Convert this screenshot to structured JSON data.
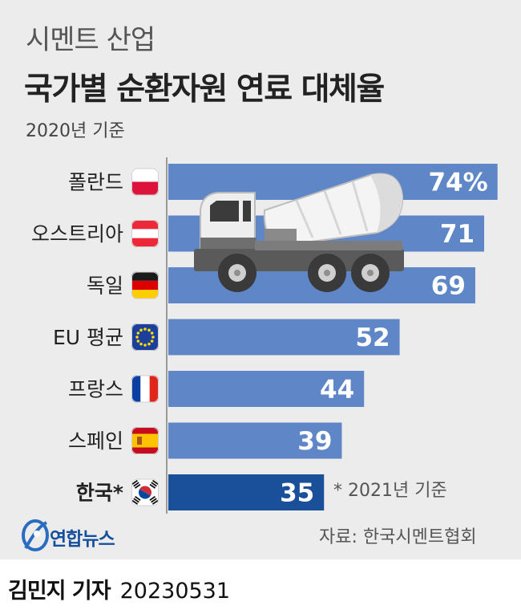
{
  "header": {
    "subtitle": "시멘트 산업",
    "title": "국가별 순환자원 연료 대체율",
    "basis": "2020년 기준"
  },
  "chart_data": {
    "type": "bar",
    "orientation": "horizontal",
    "title": "국가별 순환자원 연료 대체율",
    "unit": "%",
    "categories": [
      "폴란드",
      "오스트리아",
      "독일",
      "EU 평균",
      "프랑스",
      "스페인",
      "한국*"
    ],
    "values": [
      74,
      71,
      69,
      52,
      44,
      39,
      35
    ],
    "value_labels": [
      "74%",
      "71",
      "69",
      "52",
      "44",
      "39",
      "35"
    ],
    "flags": [
      "poland-flag-icon",
      "austria-flag-icon",
      "germany-flag-icon",
      "eu-flag-icon",
      "france-flag-icon",
      "spain-flag-icon",
      "korea-flag-icon"
    ],
    "highlight_index": 6,
    "xlim": [
      0,
      100
    ],
    "colors": {
      "bar": "#5f86c6",
      "highlight": "#1a4f99",
      "label": "#ffffff"
    }
  },
  "footnote": "* 2021년 기준",
  "source": "자료: 한국시멘트협회",
  "logo": {
    "text": "연합뉴스"
  },
  "byline": {
    "name": "김민지 기자",
    "date": "20230531"
  }
}
